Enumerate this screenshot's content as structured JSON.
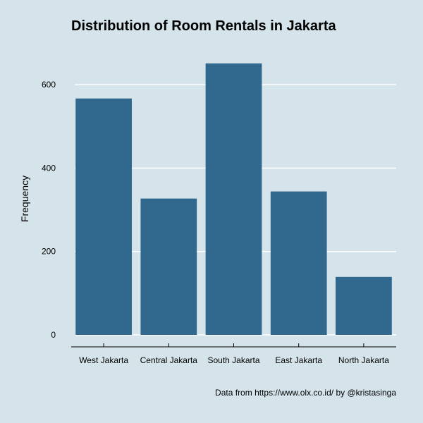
{
  "chart_data": {
    "type": "bar",
    "title": "Distribution of Room Rentals in Jakarta",
    "xlabel": "",
    "ylabel": "Frequency",
    "categories": [
      "West Jakarta",
      "Central Jakarta",
      "South Jakarta",
      "East Jakarta",
      "North Jakarta"
    ],
    "values": [
      567,
      327,
      651,
      344,
      139
    ],
    "ylim": [
      0,
      651
    ],
    "yticks": [
      0,
      200,
      400,
      600
    ],
    "ytick_labels": [
      "0",
      "200",
      "400",
      "600"
    ],
    "grid": "horizontal",
    "bar_color": "#30688e",
    "gridline_color": "#ffffff",
    "background_color": "#d5e4eb",
    "caption": "Data from https://www.olx.co.id/ by @kristasinga"
  }
}
